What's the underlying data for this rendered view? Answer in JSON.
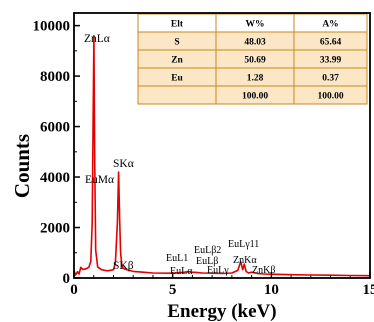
{
  "chart_data": {
    "type": "line",
    "title": "",
    "xlabel": "Energy (keV)",
    "ylabel": "Counts",
    "xlim": [
      0,
      15
    ],
    "ylim": [
      0,
      10500
    ],
    "xticks": [
      "0",
      "5",
      "10",
      "15"
    ],
    "yticks": [
      "0",
      "2000",
      "4000",
      "6000",
      "8000",
      "10000"
    ],
    "line_color": "#e30000",
    "series": [
      {
        "x": [
          0.0,
          0.08,
          0.18,
          0.26,
          0.34,
          0.45,
          0.6,
          0.75,
          0.85,
          0.92,
          0.97,
          1.01,
          1.05,
          1.1,
          1.2,
          1.4,
          1.7,
          2.0,
          2.1,
          2.2,
          2.26,
          2.31,
          2.36,
          2.42,
          2.5,
          2.7,
          3.0,
          3.5,
          4.0,
          5.0,
          5.5,
          5.8,
          6.0,
          6.2,
          6.5,
          7.0,
          7.5,
          8.0,
          8.3,
          8.45,
          8.55,
          8.63,
          8.72,
          8.85,
          9.0,
          9.3,
          9.6,
          10.0,
          11.0,
          12.0,
          13.0,
          14.0,
          15.0
        ],
        "y": [
          300,
          120,
          250,
          160,
          420,
          340,
          360,
          420,
          650,
          2200,
          6200,
          9600,
          4700,
          1100,
          430,
          330,
          280,
          330,
          620,
          2200,
          4200,
          2400,
          1000,
          520,
          380,
          320,
          260,
          230,
          200,
          190,
          220,
          250,
          230,
          220,
          200,
          190,
          180,
          200,
          300,
          650,
          330,
          550,
          260,
          200,
          230,
          180,
          160,
          150,
          130,
          120,
          110,
          100,
          90
        ]
      }
    ],
    "peak_labels": [
      "ZnLα",
      "EuMα",
      "SKα",
      "SKβ",
      "EuLβ2",
      "EuLγ11",
      "EuL1",
      "EuLβ",
      "EuLα",
      "EuLγ",
      "ZnKα",
      "ZnKβ"
    ],
    "table": {
      "headers": [
        "Elt",
        "W%",
        "A%"
      ],
      "rows": [
        [
          "S",
          "48.03",
          "65.64"
        ],
        [
          "Zn",
          "50.69",
          "33.99"
        ],
        [
          "Eu",
          "1.28",
          "0.37"
        ],
        [
          "",
          "100.00",
          "100.00"
        ]
      ],
      "header_fill": "#ffffff",
      "row_fill": "#fbe7c5",
      "border_color": "#c8891d"
    }
  }
}
